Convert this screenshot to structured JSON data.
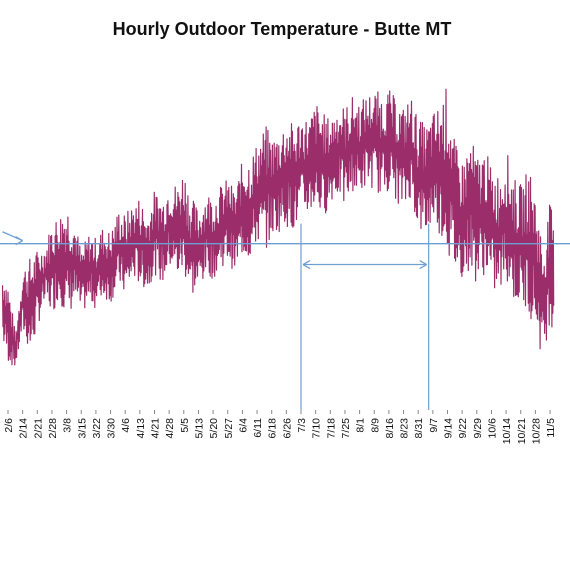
{
  "chart_data": {
    "type": "line",
    "title": "Hourly Outdoor Temperature - Butte MT",
    "xlabel": "",
    "ylabel": "",
    "grid": false,
    "legend": "none",
    "x_tick_labels": [
      "2/6",
      "2/14",
      "2/21",
      "2/28",
      "3/8",
      "3/15",
      "3/22",
      "3/30",
      "4/6",
      "4/13",
      "4/21",
      "4/28",
      "5/5",
      "5/13",
      "5/20",
      "5/27",
      "6/4",
      "6/11",
      "6/18",
      "6/26",
      "7/3",
      "7/10",
      "7/18",
      "7/25",
      "8/1",
      "8/9",
      "8/16",
      "8/23",
      "8/31",
      "9/7",
      "9/14",
      "9/22",
      "9/29",
      "10/6",
      "10/14",
      "10/21",
      "10/28",
      "11/5"
    ],
    "series": [
      {
        "color": "#9b2d6b",
        "daily_envelope": {
          "x": [
            "2/3",
            "2/6",
            "2/10",
            "2/14",
            "2/18",
            "2/21",
            "2/25",
            "2/28",
            "3/4",
            "3/8",
            "3/12",
            "3/15",
            "3/19",
            "3/22",
            "3/26",
            "3/30",
            "4/3",
            "4/6",
            "4/10",
            "4/13",
            "4/17",
            "4/21",
            "4/25",
            "4/28",
            "5/2",
            "5/5",
            "5/9",
            "5/13",
            "5/17",
            "5/20",
            "5/24",
            "5/27",
            "5/31",
            "6/4",
            "6/8",
            "6/11",
            "6/15",
            "6/18",
            "6/22",
            "6/26",
            "6/30",
            "7/3",
            "7/7",
            "7/10",
            "7/14",
            "7/18",
            "7/22",
            "7/25",
            "7/29",
            "8/1",
            "8/5",
            "8/9",
            "8/13",
            "8/16",
            "8/20",
            "8/23",
            "8/27",
            "8/31",
            "9/4",
            "9/7",
            "9/11",
            "9/14",
            "9/18",
            "9/22",
            "9/26",
            "9/29",
            "10/3",
            "10/6",
            "10/10",
            "10/14",
            "10/18",
            "10/21",
            "10/25",
            "10/28",
            "11/1",
            "11/5",
            "11/7"
          ],
          "high": [
            0.62,
            0.58,
            0.4,
            0.62,
            0.66,
            0.68,
            0.7,
            0.78,
            0.8,
            0.85,
            0.78,
            0.68,
            0.74,
            0.72,
            0.76,
            0.74,
            0.82,
            0.8,
            0.84,
            0.86,
            0.8,
            0.88,
            0.86,
            0.92,
            0.9,
            0.96,
            0.86,
            0.82,
            0.88,
            0.86,
            0.9,
            0.92,
            0.88,
            0.98,
            1.0,
            1.04,
            1.1,
            1.06,
            1.08,
            1.12,
            1.1,
            1.14,
            1.12,
            1.18,
            1.14,
            1.12,
            1.18,
            1.16,
            1.2,
            1.18,
            1.2,
            1.22,
            1.2,
            1.22,
            1.18,
            1.16,
            1.2,
            1.12,
            1.1,
            1.14,
            1.18,
            1.24,
            1.04,
            0.98,
            1.06,
            1.0,
            1.02,
            0.96,
            0.94,
            1.02,
            0.92,
            0.9,
            0.96,
            0.88,
            0.7,
            0.84,
            0.8
          ],
          "low": [
            0.36,
            0.3,
            0.28,
            0.4,
            0.32,
            0.42,
            0.5,
            0.46,
            0.52,
            0.44,
            0.5,
            0.46,
            0.5,
            0.48,
            0.52,
            0.5,
            0.56,
            0.52,
            0.58,
            0.56,
            0.54,
            0.6,
            0.56,
            0.62,
            0.58,
            0.6,
            0.52,
            0.54,
            0.6,
            0.58,
            0.62,
            0.64,
            0.6,
            0.66,
            0.64,
            0.7,
            0.68,
            0.72,
            0.74,
            0.76,
            0.74,
            0.78,
            0.8,
            0.82,
            0.78,
            0.84,
            0.86,
            0.82,
            0.88,
            0.86,
            0.9,
            0.88,
            0.86,
            0.88,
            0.84,
            0.8,
            0.86,
            0.74,
            0.72,
            0.78,
            0.72,
            0.66,
            0.6,
            0.58,
            0.62,
            0.56,
            0.6,
            0.54,
            0.52,
            0.58,
            0.5,
            0.48,
            0.46,
            0.42,
            0.3,
            0.44,
            0.4
          ]
        }
      }
    ],
    "reference_line": {
      "color": "#6f9fd0",
      "y": 0.7
    },
    "annotation": {
      "type": "double-arrow",
      "from": "7/3",
      "to": "9/5",
      "y": 0.63,
      "color": "#6f9fd0"
    },
    "vertical_markers": [
      "7/3",
      "9/5"
    ],
    "left_arrow": {
      "from": {
        "x": "2/3",
        "y": 0.74
      },
      "to": {
        "x": "2/14",
        "y": 0.71
      },
      "color": "#6f9fd0"
    }
  }
}
